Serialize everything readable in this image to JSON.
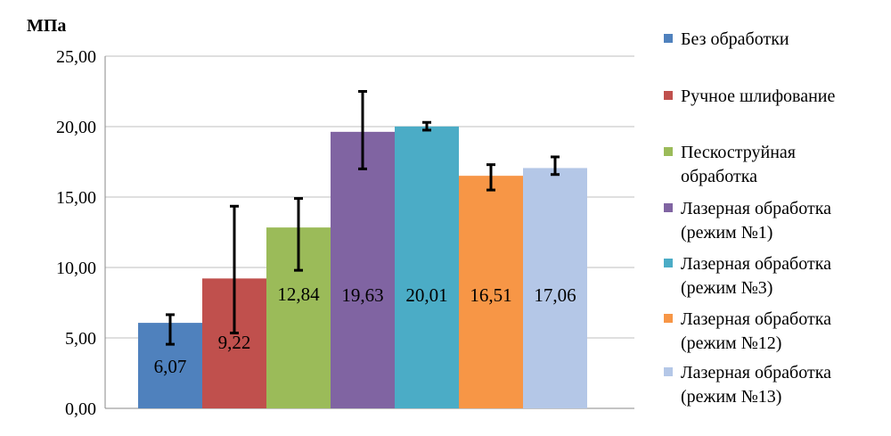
{
  "chart_data": {
    "type": "bar",
    "title": "",
    "ylabel": "МПа",
    "xlabel": "",
    "ylim": [
      0,
      25
    ],
    "yticks": [
      0,
      5,
      10,
      15,
      20,
      25
    ],
    "ytick_labels": [
      "0,00",
      "5,00",
      "10,00",
      "15,00",
      "20,00",
      "25,00"
    ],
    "grid": "horizontal",
    "legend_position": "right",
    "series": [
      {
        "name": "Без обработки",
        "value": 6.07,
        "value_label": "6,07",
        "error_low": 4.55,
        "error_high": 6.65,
        "color": "#4F81BD",
        "legend_lines": [
          "Без обработки"
        ]
      },
      {
        "name": "Ручное шлифование",
        "value": 9.22,
        "value_label": "9,22",
        "error_low": 5.35,
        "error_high": 14.35,
        "color": "#C0504D",
        "legend_lines": [
          "Ручное шлифование"
        ]
      },
      {
        "name": "Пескоструйная обработка",
        "value": 12.84,
        "value_label": "12,84",
        "error_low": 9.8,
        "error_high": 14.9,
        "color": "#9BBB59",
        "legend_lines": [
          "Пескоструйная",
          "обработка"
        ]
      },
      {
        "name": "Лазерная обработка (режим №1)",
        "value": 19.63,
        "value_label": "19,63",
        "error_low": 17.0,
        "error_high": 22.5,
        "color": "#8064A2",
        "legend_lines": [
          "Лазерная обработка",
          "(режим №1)"
        ]
      },
      {
        "name": "Лазерная обработка (режим №3)",
        "value": 20.01,
        "value_label": "20,01",
        "error_low": 19.75,
        "error_high": 20.3,
        "color": "#4BACC6",
        "legend_lines": [
          "Лазерная обработка",
          "(режим №3)"
        ]
      },
      {
        "name": "Лазерная обработка (режим №12)",
        "value": 16.51,
        "value_label": "16,51",
        "error_low": 15.5,
        "error_high": 17.3,
        "color": "#F79646",
        "legend_lines": [
          "Лазерная обработка",
          "(режим №12)"
        ]
      },
      {
        "name": "Лазерная обработка (режим №13)",
        "value": 17.06,
        "value_label": "17,06",
        "error_low": 16.6,
        "error_high": 17.85,
        "color": "#B4C7E7",
        "legend_lines": [
          "Лазерная обработка",
          "(режим №13)"
        ]
      }
    ]
  }
}
